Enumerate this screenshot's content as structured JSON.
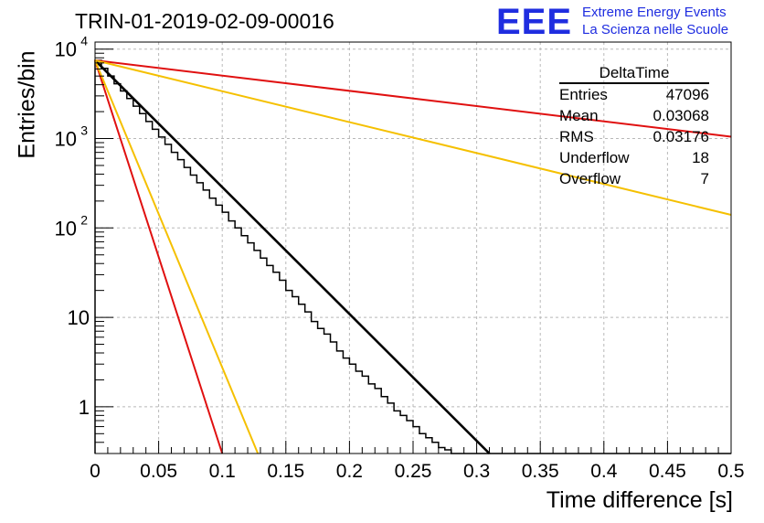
{
  "chart_data": {
    "type": "histogram",
    "title": "TRIN-01-2019-02-09-00016",
    "xlabel": "Time difference [s]",
    "ylabel": "Entries/bin",
    "xlim": [
      0,
      0.5
    ],
    "ylim": [
      0.3,
      12000
    ],
    "yscale": "log",
    "grid": true,
    "x_ticks": [
      "0",
      "0.05",
      "0.1",
      "0.15",
      "0.2",
      "0.25",
      "0.3",
      "0.35",
      "0.4",
      "0.45",
      "0.5"
    ],
    "y_ticks": [
      {
        "value": 1,
        "label": "1"
      },
      {
        "value": 10,
        "label": "10"
      },
      {
        "value": 100,
        "label": "10",
        "exp": "2"
      },
      {
        "value": 1000,
        "label": "10",
        "exp": "3"
      },
      {
        "value": 10000,
        "label": "10",
        "exp": "4"
      }
    ],
    "bin_width": 0.005,
    "histogram_values": [
      7500,
      6100,
      5000,
      4100,
      3400,
      2800,
      2300,
      1900,
      1550,
      1270,
      1040,
      860,
      700,
      580,
      475,
      390,
      320,
      265,
      215,
      180,
      150,
      120,
      100,
      82,
      68,
      56,
      46,
      38,
      32,
      26,
      20,
      17,
      14,
      11.5,
      9,
      7.5,
      6.5,
      5.3,
      4.2,
      3.5,
      3.0,
      2.5,
      2.2,
      1.8,
      1.6,
      1.3,
      1.1,
      0.9,
      0.8,
      0.7,
      0.6,
      0.5,
      0.45,
      0.4,
      0.35,
      0.33,
      0.3,
      0.3,
      0.3,
      0.3,
      0.3,
      0.3,
      0.3,
      0.3,
      0.3,
      0.3,
      0.3,
      0.3,
      0.3,
      0.3,
      0.3,
      0.3,
      0.3,
      0.3,
      0.3,
      0.3,
      0.3,
      0.3,
      0.3,
      0.3,
      0.3,
      0.3,
      0.3,
      0.3,
      0.3,
      0.3,
      0.3,
      0.3,
      0.3,
      0.3,
      0.3,
      0.3,
      0.3,
      0.3,
      0.3,
      0.3,
      0.3,
      0.3,
      0.3,
      0.3
    ],
    "series": [
      {
        "color": "#000000",
        "x": [
          0,
          0.31
        ],
        "y": [
          7500,
          0.3
        ]
      },
      {
        "color": "#e01010",
        "x": [
          0,
          0.5
        ],
        "y": [
          7500,
          1050
        ]
      },
      {
        "color": "#f5c000",
        "x": [
          0,
          0.5
        ],
        "y": [
          7500,
          140
        ]
      },
      {
        "color": "#e01010",
        "x": [
          0,
          0.1
        ],
        "y": [
          7500,
          0.3
        ]
      },
      {
        "color": "#f5c000",
        "x": [
          0,
          0.128
        ],
        "y": [
          7500,
          0.3
        ]
      }
    ]
  },
  "logo": {
    "mark": "EEE",
    "line1": "Extreme Energy Events",
    "line2": "La Scienza nelle Scuole"
  },
  "stats_box": {
    "name": "DeltaTime",
    "rows": [
      {
        "label": "Entries",
        "value": "47096"
      },
      {
        "label": "Mean",
        "value": "0.03068"
      },
      {
        "label": "RMS",
        "value": "0.03176"
      },
      {
        "label": "Underflow",
        "value": "18"
      },
      {
        "label": "Overflow",
        "value": "7"
      }
    ]
  }
}
